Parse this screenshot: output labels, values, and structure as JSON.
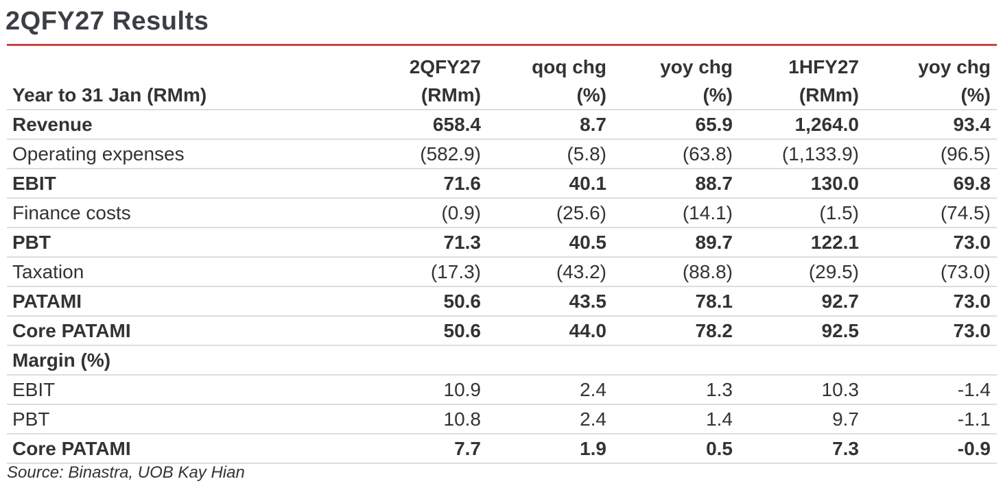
{
  "title": "2QFY27 Results",
  "accent_color": "#c8443c",
  "header": {
    "row1": [
      "",
      "2QFY27",
      "qoq chg",
      "yoy chg",
      "1HFY27",
      "yoy chg"
    ],
    "row2": [
      "Year to 31 Jan (RMm)",
      "(RMm)",
      "(%)",
      "(%)",
      "(RMm)",
      "(%)"
    ]
  },
  "rows": [
    {
      "label": "Revenue",
      "values": [
        "658.4",
        "8.7",
        "65.9",
        "1,264.0",
        "93.4"
      ],
      "bold": true
    },
    {
      "label": "Operating expenses",
      "values": [
        "(582.9)",
        "(5.8)",
        "(63.8)",
        "(1,133.9)",
        "(96.5)"
      ],
      "bold": false
    },
    {
      "label": "EBIT",
      "values": [
        "71.6",
        "40.1",
        "88.7",
        "130.0",
        "69.8"
      ],
      "bold": true
    },
    {
      "label": "Finance costs",
      "values": [
        "(0.9)",
        "(25.6)",
        "(14.1)",
        "(1.5)",
        "(74.5)"
      ],
      "bold": false
    },
    {
      "label": "PBT",
      "values": [
        "71.3",
        "40.5",
        "89.7",
        "122.1",
        "73.0"
      ],
      "bold": true
    },
    {
      "label": "Taxation",
      "values": [
        "(17.3)",
        "(43.2)",
        "(88.8)",
        "(29.5)",
        "(73.0)"
      ],
      "bold": false
    },
    {
      "label": "PATAMI",
      "values": [
        "50.6",
        "43.5",
        "78.1",
        "92.7",
        "73.0"
      ],
      "bold": true
    },
    {
      "label": "Core PATAMI",
      "values": [
        "50.6",
        "44.0",
        "78.2",
        "92.5",
        "73.0"
      ],
      "bold": true
    },
    {
      "label": "Margin (%)",
      "values": [
        "",
        "",
        "",
        "",
        ""
      ],
      "bold": true
    },
    {
      "label": "EBIT",
      "values": [
        "10.9",
        "2.4",
        "1.3",
        "10.3",
        "-1.4"
      ],
      "bold": false
    },
    {
      "label": "PBT",
      "values": [
        "10.8",
        "2.4",
        "1.4",
        "9.7",
        "-1.1"
      ],
      "bold": false
    },
    {
      "label": "Core PATAMI",
      "values": [
        "7.7",
        "1.9",
        "0.5",
        "7.3",
        "-0.9"
      ],
      "bold": true
    }
  ],
  "source": "Source: Binastra, UOB Kay Hian"
}
